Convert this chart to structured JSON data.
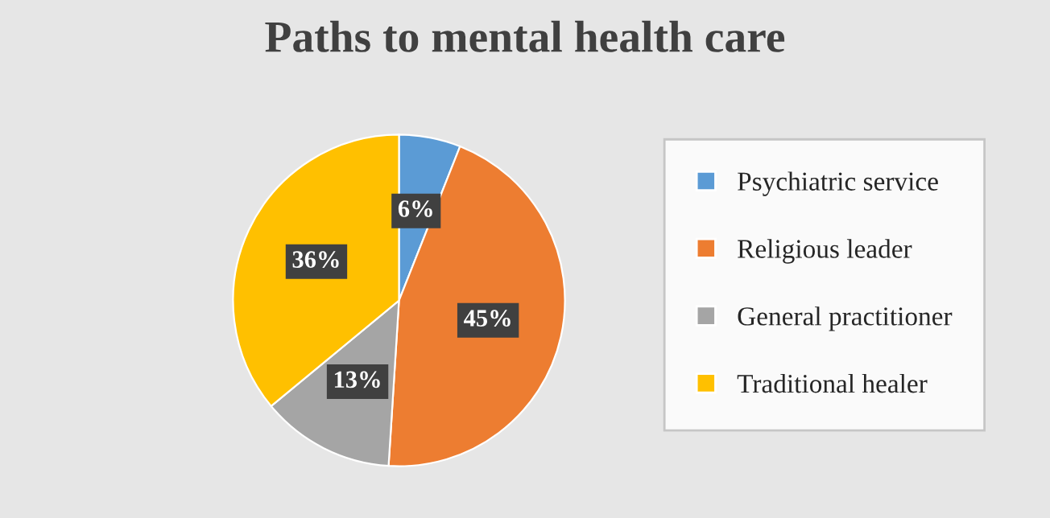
{
  "chart_data": {
    "type": "pie",
    "title": "Paths to mental health care",
    "categories": [
      "Psychiatric service",
      "Religious leader",
      "General practitioner",
      "Traditional healer"
    ],
    "values": [
      6,
      45,
      13,
      36
    ],
    "colors": [
      "#5b9bd5",
      "#ed7d31",
      "#a5a5a5",
      "#ffc000"
    ],
    "value_labels": [
      "6%",
      "45%",
      "13%",
      "36%"
    ],
    "legend": "right"
  }
}
